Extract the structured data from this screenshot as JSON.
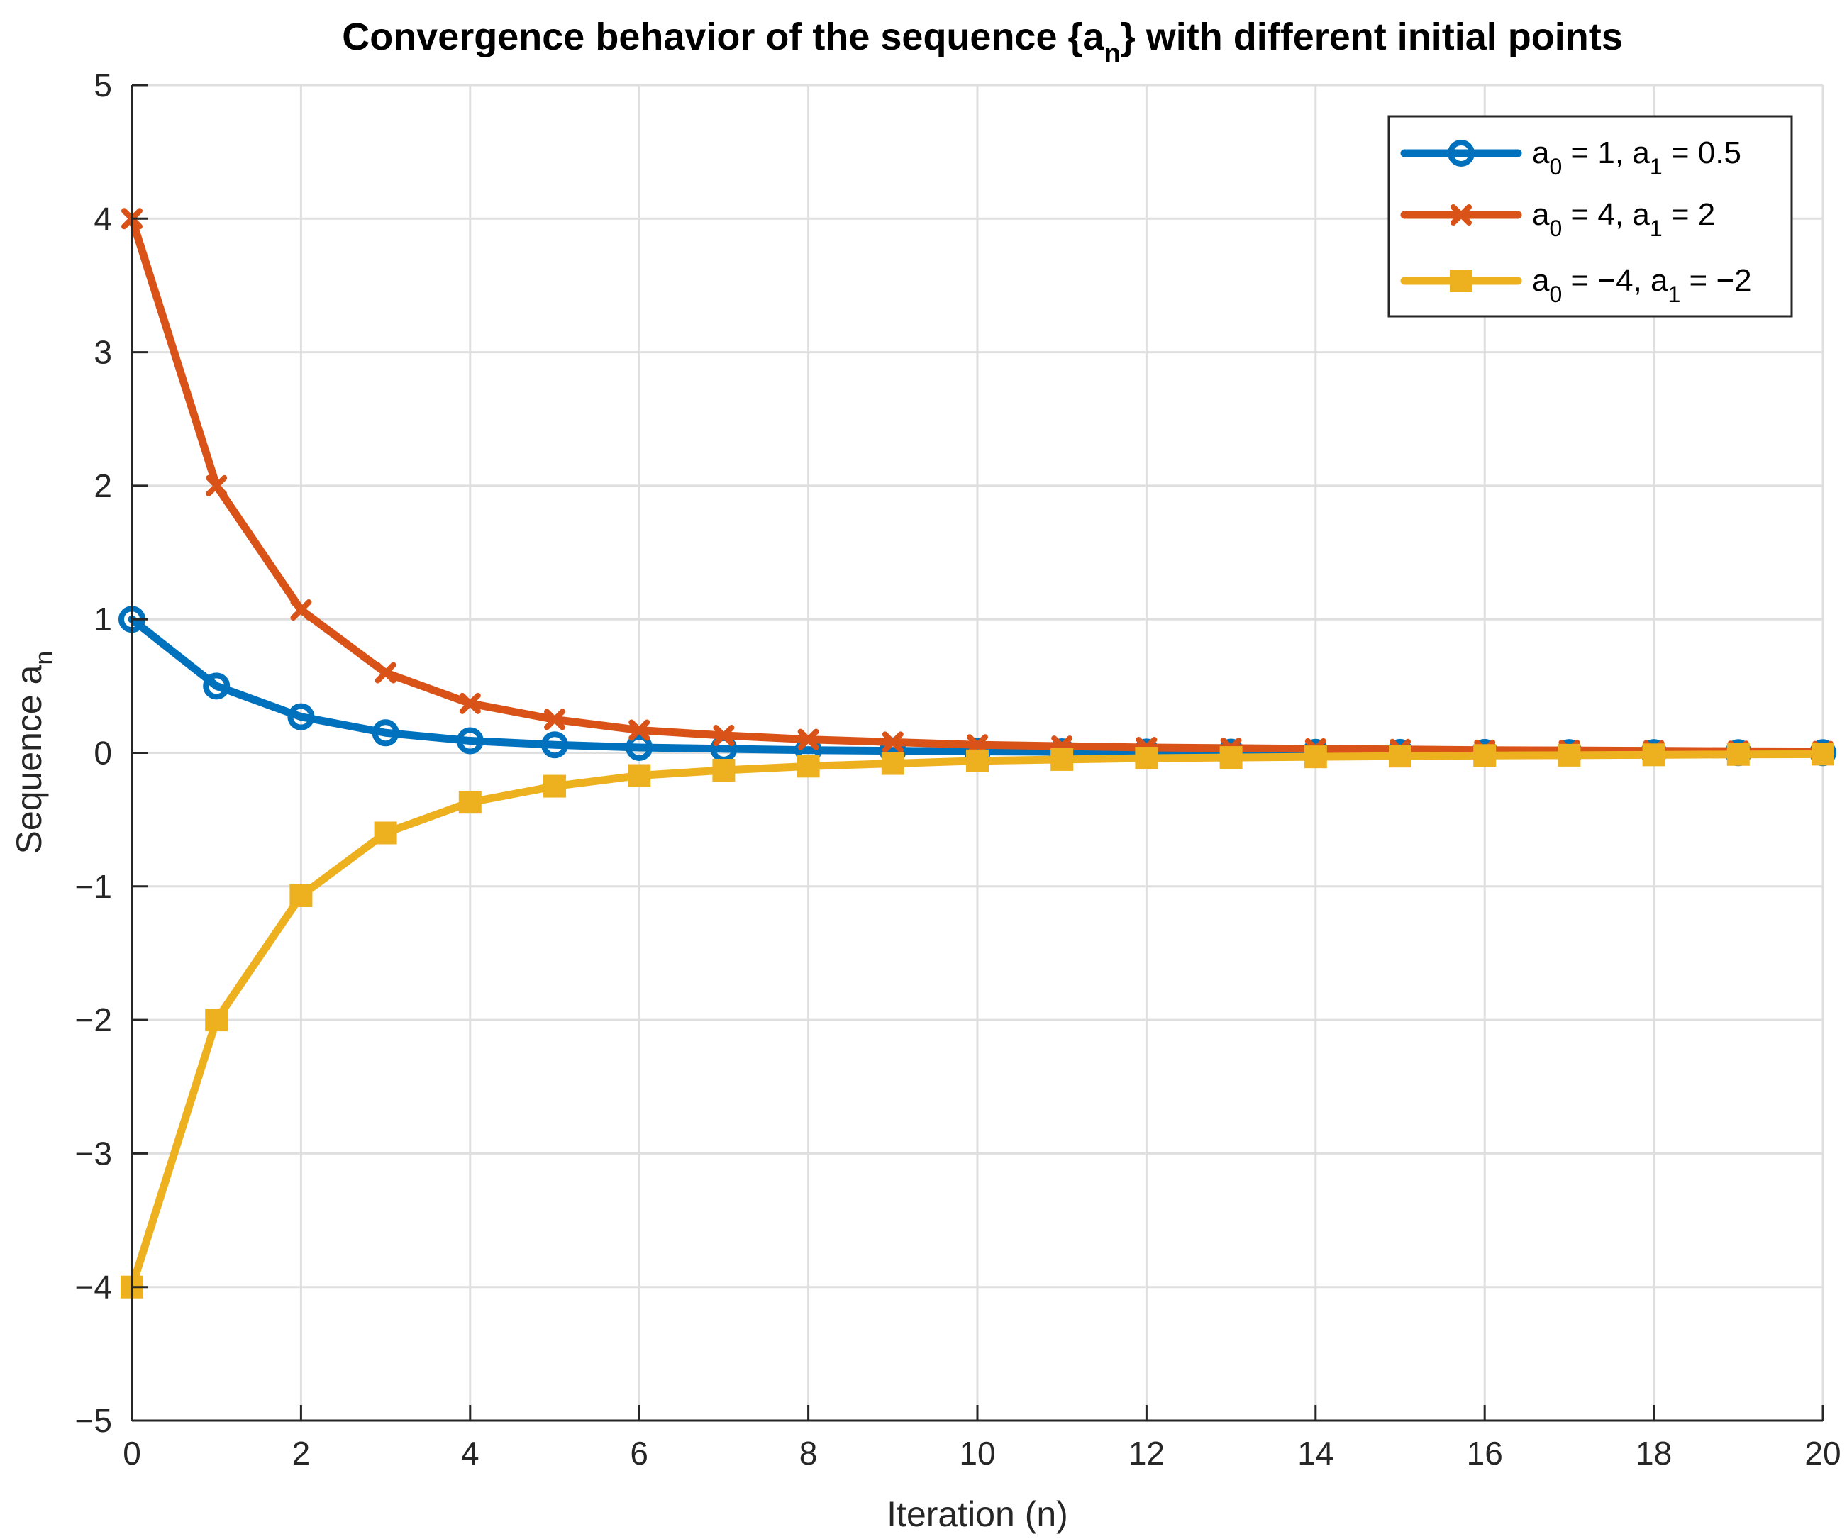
{
  "chart_data": {
    "type": "line",
    "title": "Convergence behavior of the sequence {a_n} with different initial points",
    "title_parts": {
      "before": "Convergence behavior of the sequence {a",
      "sub": "n",
      "after": "} with different initial points"
    },
    "xlabel": "Iteration (n)",
    "ylabel": "Sequence a_n",
    "ylabel_parts": {
      "main": "Sequence a",
      "sub": "n"
    },
    "xlim": [
      0,
      20
    ],
    "ylim": [
      -5,
      5
    ],
    "xticks": [
      0,
      2,
      4,
      6,
      8,
      10,
      12,
      14,
      16,
      18,
      20
    ],
    "xtick_labels": [
      "0",
      "2",
      "4",
      "6",
      "8",
      "10",
      "12",
      "14",
      "16",
      "18",
      "20"
    ],
    "yticks": [
      5,
      4,
      3,
      2,
      1,
      0,
      -1,
      -2,
      -3,
      -4,
      -5
    ],
    "ytick_labels": [
      "5",
      "4",
      "3",
      "2",
      "1",
      "0",
      "−1",
      "−2",
      "−3",
      "−4",
      "−5"
    ],
    "grid": true,
    "legend_location": "top-right",
    "x": [
      0,
      1,
      2,
      3,
      4,
      5,
      6,
      7,
      8,
      9,
      10,
      11,
      12,
      13,
      14,
      15,
      16,
      17,
      18,
      19,
      20
    ],
    "series": [
      {
        "name": "a_0 = 1, a_1 = 0.5",
        "legend_parts": [
          "a",
          "0",
          " = 1, a",
          "1",
          " = 0.5"
        ],
        "color": "#0072BD",
        "marker": "circle",
        "values": [
          1,
          0.5,
          0.27,
          0.15,
          0.09,
          0.06,
          0.04,
          0.03,
          0.02,
          0.015,
          0.01,
          0.008,
          0.006,
          0.005,
          0.004,
          0.003,
          0.003,
          0.002,
          0.002,
          0.001,
          0.001
        ]
      },
      {
        "name": "a_0 = 4, a_1 = 2",
        "legend_parts": [
          "a",
          "0",
          " = 4, a",
          "1",
          " = 2"
        ],
        "color": "#D95319",
        "marker": "x",
        "values": [
          4,
          2,
          1.07,
          0.6,
          0.37,
          0.25,
          0.17,
          0.13,
          0.1,
          0.08,
          0.06,
          0.05,
          0.04,
          0.035,
          0.03,
          0.025,
          0.02,
          0.018,
          0.015,
          0.012,
          0.01
        ]
      },
      {
        "name": "a_0 = −4, a_1 = −2",
        "legend_parts": [
          "a",
          "0",
          " = −4, a",
          "1",
          " = −2"
        ],
        "color": "#EDB120",
        "marker": "square",
        "values": [
          -4,
          -2,
          -1.07,
          -0.6,
          -0.37,
          -0.25,
          -0.17,
          -0.13,
          -0.1,
          -0.08,
          -0.06,
          -0.05,
          -0.04,
          -0.035,
          -0.03,
          -0.025,
          -0.02,
          -0.018,
          -0.015,
          -0.012,
          -0.01
        ]
      }
    ]
  }
}
